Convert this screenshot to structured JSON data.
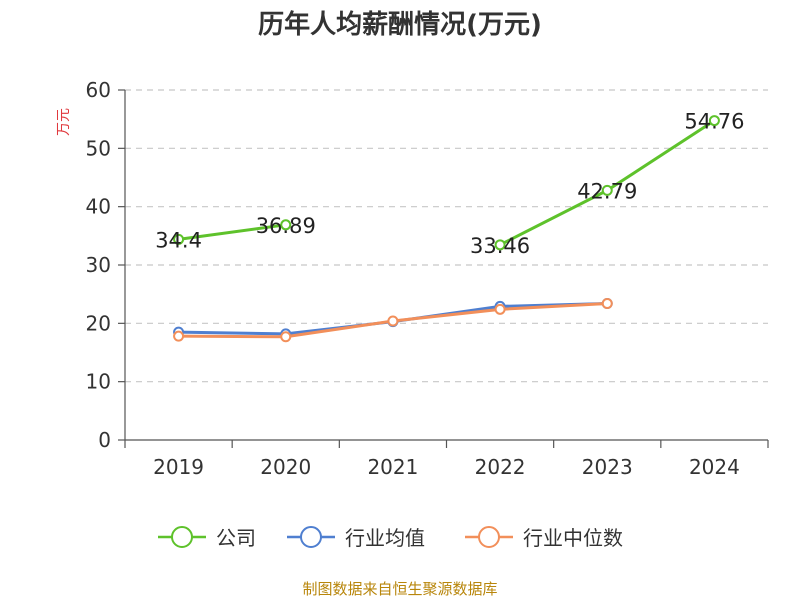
{
  "chart_data": {
    "type": "line",
    "title": "历年人均薪酬情况(万元)",
    "ylabel": "万元",
    "ylim": [
      0,
      60
    ],
    "yticks": [
      0,
      10,
      20,
      30,
      40,
      50,
      60
    ],
    "categories": [
      "2019",
      "2020",
      "2021",
      "2022",
      "2023",
      "2024"
    ],
    "grid": true,
    "legend_position": "bottom",
    "series": [
      {
        "name": "公司",
        "color": "#5ec22b",
        "values": [
          34.4,
          36.89,
          null,
          33.46,
          42.79,
          54.76
        ],
        "labels": [
          "34.4",
          "36.89",
          "",
          "33.46",
          "42.79",
          "54.76"
        ]
      },
      {
        "name": "行业均值",
        "color": "#4f7fd0",
        "values": [
          18.5,
          18.2,
          20.3,
          22.9,
          23.4,
          null
        ]
      },
      {
        "name": "行业中位数",
        "color": "#f28f5a",
        "values": [
          17.8,
          17.7,
          20.4,
          22.4,
          23.4,
          null
        ]
      }
    ],
    "source": "制图数据来自恒生聚源数据库"
  }
}
